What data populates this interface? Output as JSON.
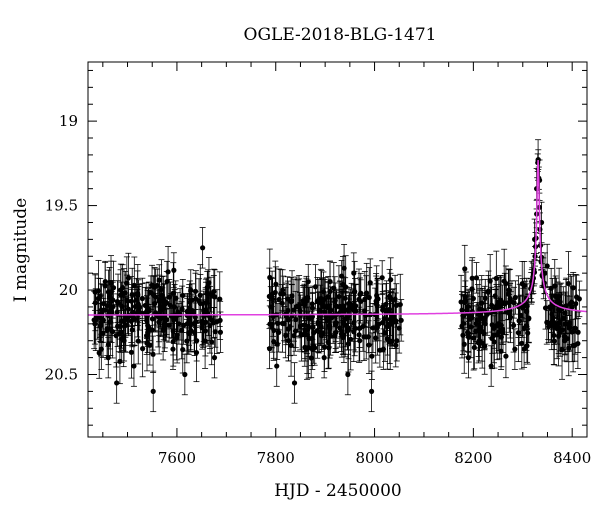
{
  "chart_data": {
    "type": "scatter",
    "title": "OGLE-2018-BLG-1471",
    "xlabel": "HJD - 2450000",
    "ylabel": "I magnitude",
    "xlim": [
      7420,
      8430
    ],
    "ylim": [
      20.87,
      18.65
    ],
    "y_inverted": true,
    "xticks": [
      "7600",
      "7800",
      "8000",
      "8200",
      "8400"
    ],
    "yticks": [
      "19",
      "19.5",
      "20",
      "20.5"
    ],
    "grid": false,
    "colors": {
      "points": "#000000",
      "model": "#e040e0"
    },
    "baseline_magnitude": 20.15,
    "peak": {
      "x": 8331,
      "y": 19.23
    },
    "seasons": [
      {
        "range": [
          7432,
          7690
        ]
      },
      {
        "range": [
          7785,
          8055
        ]
      },
      {
        "range": [
          8175,
          8415
        ]
      }
    ],
    "series": [
      {
        "x": [
          7434,
          7441,
          7447,
          7455,
          7461,
          7470,
          7478,
          7486,
          7493,
          7502,
          7513,
          7530,
          7541,
          7552,
          7566,
          7580,
          7592,
          7604,
          7616,
          7628,
          7640,
          7652,
          7664,
          7676,
          7688,
          7790,
          7802,
          7814,
          7826,
          7838,
          7850,
          7862,
          7874,
          7886,
          7898,
          7910,
          7922,
          7934,
          7946,
          7958,
          7970,
          7982,
          7994,
          8006,
          8018,
          8030,
          8045,
          8180,
          8190,
          8200,
          8212,
          8224,
          8236,
          8248,
          8260,
          8272,
          8284,
          8296,
          8308,
          8318,
          8324,
          8328,
          8331,
          8334,
          8338,
          8345,
          8355,
          8370,
          8385,
          8400,
          8412
        ],
        "y": [
          20.2,
          20.05,
          20.35,
          19.95,
          20.4,
          20.1,
          20.55,
          20.0,
          20.3,
          20.15,
          20.45,
          20.05,
          20.25,
          20.6,
          20.1,
          19.95,
          20.35,
          20.2,
          20.5,
          20.0,
          20.3,
          19.75,
          20.15,
          20.4,
          20.25,
          20.1,
          20.45,
          20.0,
          20.3,
          20.55,
          20.15,
          20.05,
          20.35,
          20.2,
          20.4,
          19.95,
          20.25,
          20.1,
          20.5,
          19.9,
          20.3,
          20.15,
          20.6,
          20.05,
          20.35,
          20.2,
          20.3,
          20.15,
          20.4,
          20.05,
          20.3,
          20.2,
          20.45,
          20.1,
          20.25,
          20.0,
          20.35,
          20.15,
          20.05,
          19.95,
          19.7,
          19.4,
          19.23,
          19.35,
          19.6,
          19.9,
          20.1,
          20.2,
          20.3,
          20.1,
          20.25
        ],
        "y_err": 0.12
      }
    ]
  }
}
